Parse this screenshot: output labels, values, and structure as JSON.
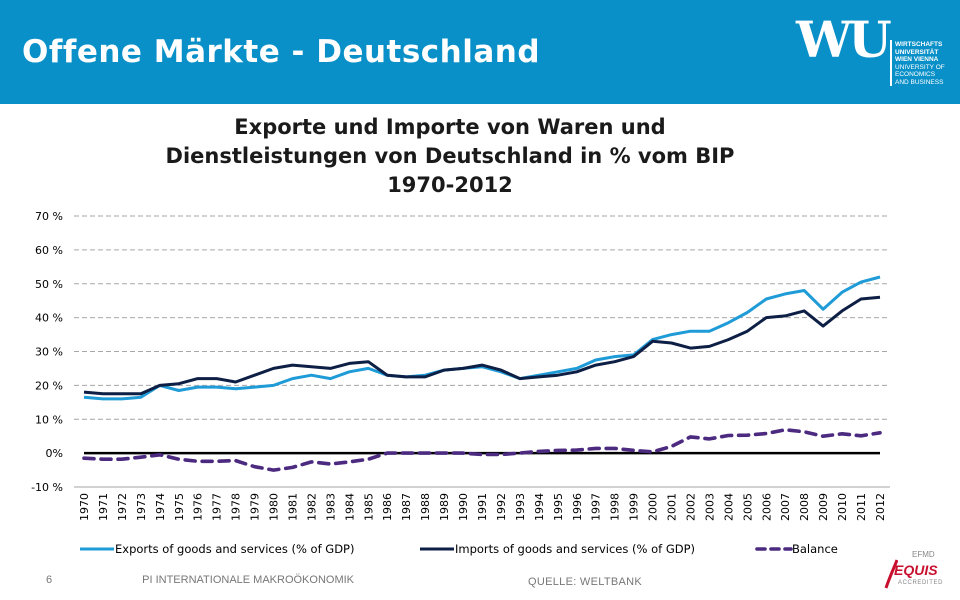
{
  "slide": {
    "title": "Offene Märkte - Deutschland",
    "footer_page": "6",
    "footer_course": "PI INTERNATIONALE MAKROÖKONOMIK",
    "footer_source": "QUELLE: WELTBANK"
  },
  "logo": {
    "mark": "WU",
    "lines": [
      "WIRTSCHAFTS",
      "UNIVERSITÄT",
      "WIEN VIENNA",
      "UNIVERSITY OF",
      "ECONOMICS",
      "AND BUSINESS"
    ]
  },
  "accreditation": {
    "org": "EFMD",
    "name": "EQUIS",
    "sub": "ACCREDITED"
  },
  "colors": {
    "header": "#0a90c8",
    "exports": "#1f9bd7",
    "imports": "#0d1f45",
    "balance": "#4b2a80",
    "zero_line": "#000000"
  },
  "chart_data": {
    "type": "line",
    "title_lines": [
      "Exporte und Importe von Waren und",
      "Dienstleistungen von Deutschland in % vom BIP",
      "1970-2012"
    ],
    "x": [
      1970,
      1971,
      1972,
      1973,
      1974,
      1975,
      1976,
      1977,
      1978,
      1979,
      1980,
      1981,
      1982,
      1983,
      1984,
      1985,
      1986,
      1987,
      1988,
      1989,
      1990,
      1991,
      1992,
      1993,
      1994,
      1995,
      1996,
      1997,
      1998,
      1999,
      2000,
      2001,
      2002,
      2003,
      2004,
      2005,
      2006,
      2007,
      2008,
      2009,
      2010,
      2011,
      2012
    ],
    "y_ticks": [
      -10,
      0,
      10,
      20,
      30,
      40,
      50,
      60,
      70
    ],
    "y_tick_labels": [
      "-10 %",
      "0%",
      "10 %",
      "20 %",
      "30 %",
      "40 %",
      "50 %",
      "60 %",
      "70 %"
    ],
    "ylim": [
      -10,
      70
    ],
    "grid": true,
    "legend_position": "bottom",
    "series": [
      {
        "name": "Exports of goods and services (% of GDP)",
        "style": "solid",
        "values": [
          16.5,
          16,
          16,
          16.5,
          20,
          18.5,
          19.5,
          19.5,
          19,
          19.5,
          20,
          22,
          23,
          22,
          24,
          25,
          23,
          22.5,
          23,
          24.5,
          25,
          25.5,
          24,
          22,
          23,
          24,
          25,
          27.5,
          28.5,
          29,
          33.5,
          35,
          36,
          36,
          38.5,
          41.5,
          45.5,
          47,
          48,
          42.5,
          47.5,
          50.5,
          52
        ]
      },
      {
        "name": "Imports of goods and services (% of GDP)",
        "style": "solid",
        "values": [
          18,
          17.5,
          17.5,
          17.5,
          20,
          20.5,
          22,
          22,
          21,
          23,
          25,
          26,
          25.5,
          25,
          26.5,
          27,
          23,
          22.5,
          22.5,
          24.5,
          25,
          26,
          24.5,
          22,
          22.5,
          23,
          24,
          26,
          27,
          28.5,
          33,
          32.5,
          31,
          31.5,
          33.5,
          36,
          40,
          40.5,
          42,
          37.5,
          42,
          45.5,
          46
        ]
      },
      {
        "name": "Balance",
        "style": "dashed",
        "values": [
          -1.5,
          -1.8,
          -1.8,
          -1.2,
          -0.5,
          -1.8,
          -2.4,
          -2.4,
          -2.2,
          -4,
          -5,
          -4.2,
          -2.6,
          -3.2,
          -2.6,
          -1.8,
          0,
          0,
          0,
          0,
          0,
          -0.4,
          -0.4,
          0,
          0.5,
          0.8,
          0.9,
          1.4,
          1.4,
          0.8,
          0.4,
          2,
          4.8,
          4.2,
          5.2,
          5.3,
          5.8,
          6.9,
          6.3,
          5,
          5.7,
          5.1,
          6
        ]
      }
    ]
  }
}
